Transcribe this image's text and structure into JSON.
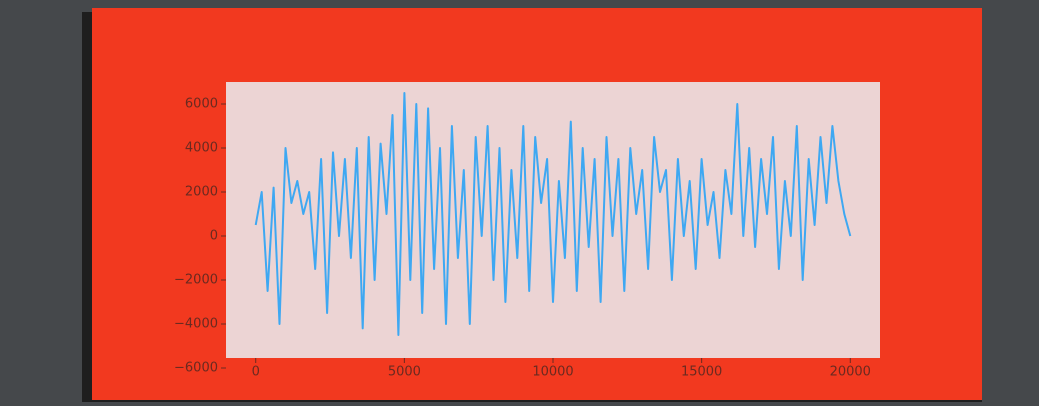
{
  "chart_data": {
    "type": "line",
    "color": "#3ea8f2",
    "x": [
      0,
      200,
      400,
      600,
      800,
      1000,
      1200,
      1400,
      1600,
      1800,
      2000,
      2200,
      2400,
      2600,
      2800,
      3000,
      3200,
      3400,
      3600,
      3800,
      4000,
      4200,
      4400,
      4600,
      4800,
      5000,
      5200,
      5400,
      5600,
      5800,
      6000,
      6200,
      6400,
      6600,
      6800,
      7000,
      7200,
      7400,
      7600,
      7800,
      8000,
      8200,
      8400,
      8600,
      8800,
      9000,
      9200,
      9400,
      9600,
      9800,
      10000,
      10200,
      10400,
      10600,
      10800,
      11000,
      11200,
      11400,
      11600,
      11800,
      12000,
      12200,
      12400,
      12600,
      12800,
      13000,
      13200,
      13400,
      13600,
      13800,
      14000,
      14200,
      14400,
      14600,
      14800,
      15000,
      15200,
      15400,
      15600,
      15800,
      16000,
      16200,
      16400,
      16600,
      16800,
      17000,
      17200,
      17400,
      17600,
      17800,
      18000,
      18200,
      18400,
      18600,
      18800,
      19000,
      19200,
      19400,
      19600,
      19800,
      20000
    ],
    "values": [
      500,
      2000,
      -2500,
      2200,
      -4000,
      4000,
      1500,
      2500,
      1000,
      2000,
      -1500,
      3500,
      -3500,
      3800,
      0,
      3500,
      -1000,
      4000,
      -4200,
      4500,
      -2000,
      4200,
      1000,
      5500,
      -4500,
      6500,
      -2000,
      6000,
      -3500,
      5800,
      -1500,
      4000,
      -4000,
      5000,
      -1000,
      3000,
      -4000,
      4500,
      0,
      5000,
      -2000,
      4000,
      -3000,
      3000,
      -1000,
      5000,
      -2500,
      4500,
      1500,
      3500,
      -3000,
      2500,
      -1000,
      5200,
      -2500,
      4000,
      -500,
      3500,
      -3000,
      4500,
      0,
      3500,
      -2500,
      4000,
      1000,
      3000,
      -1500,
      4500,
      2000,
      3000,
      -2000,
      3500,
      0,
      2500,
      -1500,
      3500,
      500,
      2000,
      -1000,
      3000,
      1000,
      6000,
      0,
      4000,
      -500,
      3500,
      1000,
      4500,
      -1500,
      2500,
      0,
      5000,
      -2000,
      3500,
      500,
      4500,
      1500,
      5000,
      2500,
      1000,
      0
    ],
    "xlim": [
      -1000,
      21000
    ],
    "xticks": [
      0,
      5000,
      10000,
      15000,
      20000
    ],
    "ylim": [
      -6000,
      7000
    ],
    "yticks": [
      {
        "value": -6000,
        "label": "−6000"
      },
      {
        "value": -4000,
        "label": "−4000"
      },
      {
        "value": -2000,
        "label": "−2000"
      },
      0,
      2000,
      4000,
      6000
    ]
  }
}
